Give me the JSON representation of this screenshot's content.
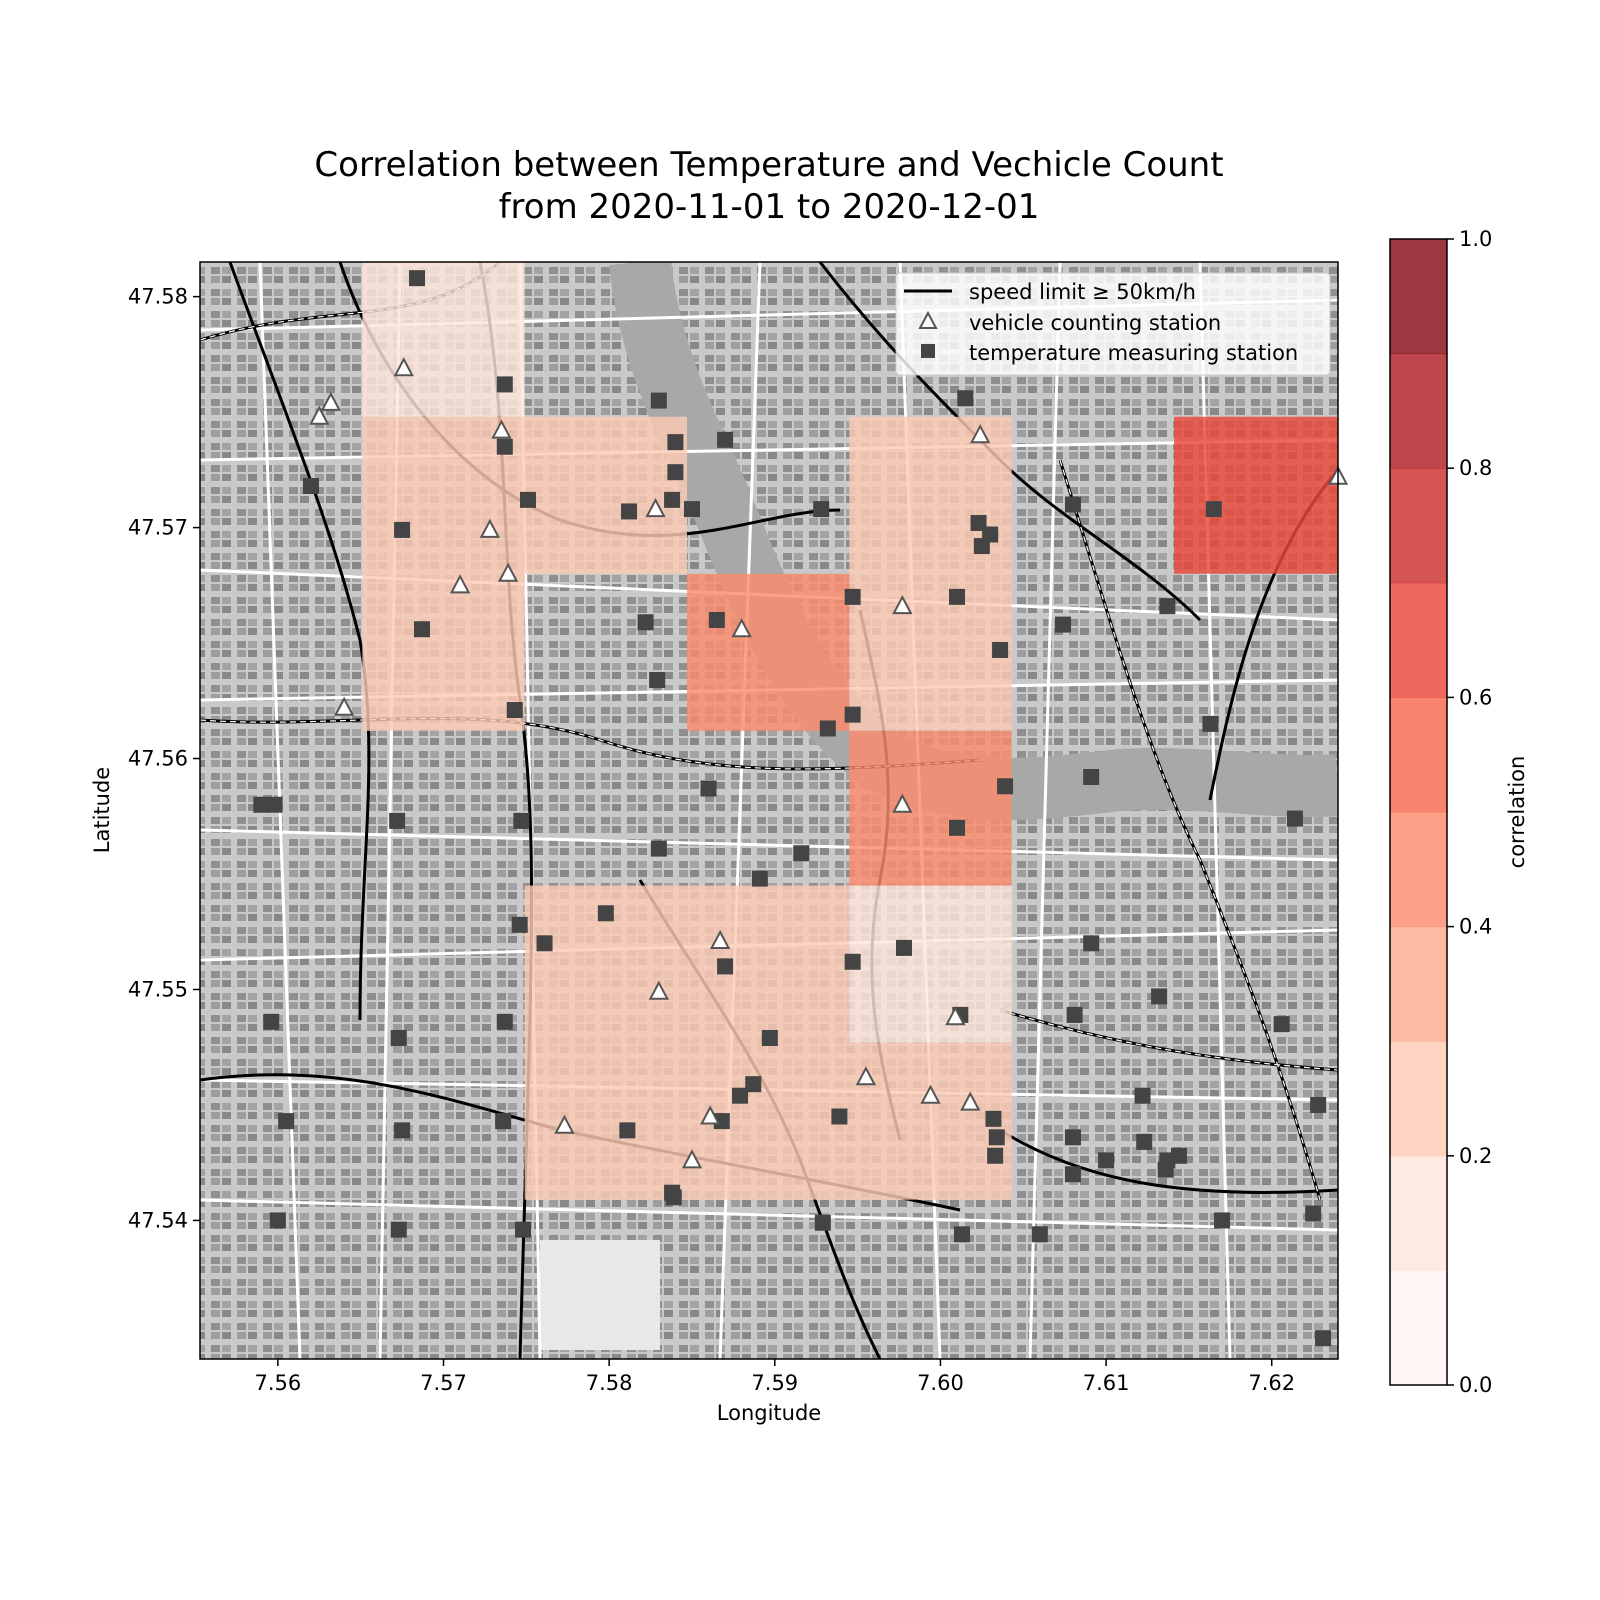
{
  "chart_data": {
    "type": "heatmap",
    "title": "Correlation between Temperature and Vechicle Count\nfrom 2020-11-01 to 2020-12-01",
    "xlabel": "Longitude",
    "ylabel": "Latitude",
    "xlim": [
      7.5553,
      7.624
    ],
    "ylim": [
      47.534,
      47.5815
    ],
    "xticks": [
      7.56,
      7.57,
      7.58,
      7.59,
      7.6,
      7.61,
      7.62
    ],
    "xtick_labels": [
      "7.56",
      "7.57",
      "7.58",
      "7.59",
      "7.60",
      "7.61",
      "7.62"
    ],
    "yticks": [
      47.54,
      47.55,
      47.56,
      47.57,
      47.58
    ],
    "ytick_labels": [
      "47.54",
      "47.55",
      "47.56",
      "47.57",
      "47.58"
    ],
    "grid": false,
    "background": "grayscale street map of Basel",
    "colorbar": {
      "label": "correlation",
      "range": [
        0,
        1
      ],
      "ticks": [
        0.0,
        0.2,
        0.4,
        0.6,
        0.8,
        1.0
      ],
      "tick_labels": [
        "0.0",
        "0.2",
        "0.4",
        "0.6",
        "0.8",
        "1.0"
      ],
      "levels": 10,
      "colors": [
        "#fff5f0",
        "#fee5d9",
        "#fcc9b4",
        "#fcab8f",
        "#fb8b6d",
        "#f6694f",
        "#e9483a",
        "#cc3030",
        "#b01f27",
        "#870b16"
      ]
    },
    "cells": [
      {
        "x0": 7.5651,
        "x1": 7.5749,
        "y0": 47.5748,
        "y1": 47.5815,
        "value": 0.18
      },
      {
        "x0": 7.5651,
        "x1": 7.5847,
        "y0": 47.568,
        "y1": 47.5748,
        "value": 0.28
      },
      {
        "x0": 7.5651,
        "x1": 7.5749,
        "y0": 47.5612,
        "y1": 47.568,
        "value": 0.28
      },
      {
        "x0": 7.5847,
        "x1": 7.5945,
        "y0": 47.5612,
        "y1": 47.568,
        "value": 0.45
      },
      {
        "x0": 7.5945,
        "x1": 7.6043,
        "y0": 47.5612,
        "y1": 47.5748,
        "value": 0.28
      },
      {
        "x0": 7.6141,
        "x1": 7.624,
        "y0": 47.568,
        "y1": 47.5748,
        "value": 0.65
      },
      {
        "x0": 7.5945,
        "x1": 7.6043,
        "y0": 47.5545,
        "y1": 47.5612,
        "value": 0.45
      },
      {
        "x0": 7.5749,
        "x1": 7.5945,
        "y0": 47.5409,
        "y1": 47.5545,
        "value": 0.28
      },
      {
        "x0": 7.5945,
        "x1": 7.6043,
        "y0": 47.5477,
        "y1": 47.5545,
        "value": 0.12
      },
      {
        "x0": 7.5945,
        "x1": 7.6043,
        "y0": 47.5409,
        "y1": 47.5477,
        "value": 0.28
      }
    ],
    "legend": {
      "placement": "top-right",
      "entries": [
        {
          "label": "speed limit ≥ 50km/h",
          "marker": "line"
        },
        {
          "label": "vehicle counting station",
          "marker": "triangle"
        },
        {
          "label": "temperature measuring station",
          "marker": "square"
        }
      ]
    },
    "vehicle_counting_stations": [
      [
        7.5676,
        47.5769
      ],
      [
        7.5625,
        47.5748
      ],
      [
        7.5632,
        47.5754
      ],
      [
        7.5735,
        47.5742
      ],
      [
        7.5828,
        47.5708
      ],
      [
        7.5728,
        47.5699
      ],
      [
        7.571,
        47.5675
      ],
      [
        7.5739,
        47.568
      ],
      [
        7.588,
        47.5656
      ],
      [
        7.5977,
        47.5666
      ],
      [
        7.6024,
        47.574
      ],
      [
        7.564,
        47.5622
      ],
      [
        7.5977,
        47.558
      ],
      [
        7.6009,
        47.5488
      ],
      [
        7.5867,
        47.5521
      ],
      [
        7.583,
        47.5499
      ],
      [
        7.5955,
        47.5462
      ],
      [
        7.5994,
        47.5454
      ],
      [
        7.6018,
        47.5451
      ],
      [
        7.5773,
        47.5441
      ],
      [
        7.5861,
        47.5445
      ],
      [
        7.585,
        47.5426
      ],
      [
        7.624,
        47.5722
      ]
    ],
    "temperature_stations": [
      [
        7.5684,
        47.5808
      ],
      [
        7.5737,
        47.5762
      ],
      [
        7.583,
        47.5755
      ],
      [
        7.584,
        47.5737
      ],
      [
        7.587,
        47.5738
      ],
      [
        7.6015,
        47.5756
      ],
      [
        7.5737,
        47.5735
      ],
      [
        7.584,
        47.5724
      ],
      [
        7.562,
        47.5718
      ],
      [
        7.5751,
        47.5712
      ],
      [
        7.5812,
        47.5707
      ],
      [
        7.5838,
        47.5712
      ],
      [
        7.585,
        47.5708
      ],
      [
        7.5928,
        47.5708
      ],
      [
        7.608,
        47.571
      ],
      [
        7.6165,
        47.5708
      ],
      [
        7.5675,
        47.5699
      ],
      [
        7.6023,
        47.5702
      ],
      [
        7.603,
        47.5697
      ],
      [
        7.6025,
        47.5692
      ],
      [
        7.5947,
        47.567
      ],
      [
        7.601,
        47.567
      ],
      [
        7.6137,
        47.5666
      ],
      [
        7.5687,
        47.5656
      ],
      [
        7.5822,
        47.5659
      ],
      [
        7.5865,
        47.566
      ],
      [
        7.6074,
        47.5658
      ],
      [
        7.6036,
        47.5647
      ],
      [
        7.5829,
        47.5634
      ],
      [
        7.5743,
        47.5621
      ],
      [
        7.5947,
        47.5619
      ],
      [
        7.5932,
        47.5613
      ],
      [
        7.6163,
        47.5615
      ],
      [
        7.586,
        47.5587
      ],
      [
        7.6039,
        47.5588
      ],
      [
        7.6091,
        47.5592
      ],
      [
        7.559,
        47.558
      ],
      [
        7.5598,
        47.558
      ],
      [
        7.5672,
        47.5573
      ],
      [
        7.5747,
        47.5573
      ],
      [
        7.601,
        47.557
      ],
      [
        7.6214,
        47.5574
      ],
      [
        7.583,
        47.5561
      ],
      [
        7.5916,
        47.5559
      ],
      [
        7.5891,
        47.5548
      ],
      [
        7.5798,
        47.5533
      ],
      [
        7.5746,
        47.5528
      ],
      [
        7.5761,
        47.552
      ],
      [
        7.5978,
        47.5518
      ],
      [
        7.6091,
        47.552
      ],
      [
        7.5947,
        47.5512
      ],
      [
        7.587,
        47.551
      ],
      [
        7.6132,
        47.5497
      ],
      [
        7.5596,
        47.5486
      ],
      [
        7.5737,
        47.5486
      ],
      [
        7.6012,
        47.5489
      ],
      [
        7.6081,
        47.5489
      ],
      [
        7.6206,
        47.5485
      ],
      [
        7.5673,
        47.5479
      ],
      [
        7.5897,
        47.5479
      ],
      [
        7.5887,
        47.5459
      ],
      [
        7.5879,
        47.5454
      ],
      [
        7.6122,
        47.5454
      ],
      [
        7.6228,
        47.545
      ],
      [
        7.5605,
        47.5443
      ],
      [
        7.5736,
        47.5443
      ],
      [
        7.5868,
        47.5443
      ],
      [
        7.5939,
        47.5445
      ],
      [
        7.6032,
        47.5444
      ],
      [
        7.5675,
        47.5439
      ],
      [
        7.5811,
        47.5439
      ],
      [
        7.6034,
        47.5436
      ],
      [
        7.6033,
        47.5428
      ],
      [
        7.608,
        47.5436
      ],
      [
        7.6123,
        47.5434
      ],
      [
        7.61,
        47.5426
      ],
      [
        7.6137,
        47.5426
      ],
      [
        7.6144,
        47.5428
      ],
      [
        7.6136,
        47.5422
      ],
      [
        7.608,
        47.542
      ],
      [
        7.5838,
        47.5412
      ],
      [
        7.5839,
        47.541
      ],
      [
        7.56,
        47.54
      ],
      [
        7.5929,
        47.5399
      ],
      [
        7.617,
        47.54
      ],
      [
        7.6225,
        47.5403
      ],
      [
        7.5673,
        47.5396
      ],
      [
        7.5748,
        47.5396
      ],
      [
        7.6013,
        47.5394
      ],
      [
        7.606,
        47.5394
      ],
      [
        7.6231,
        47.5349
      ]
    ]
  }
}
